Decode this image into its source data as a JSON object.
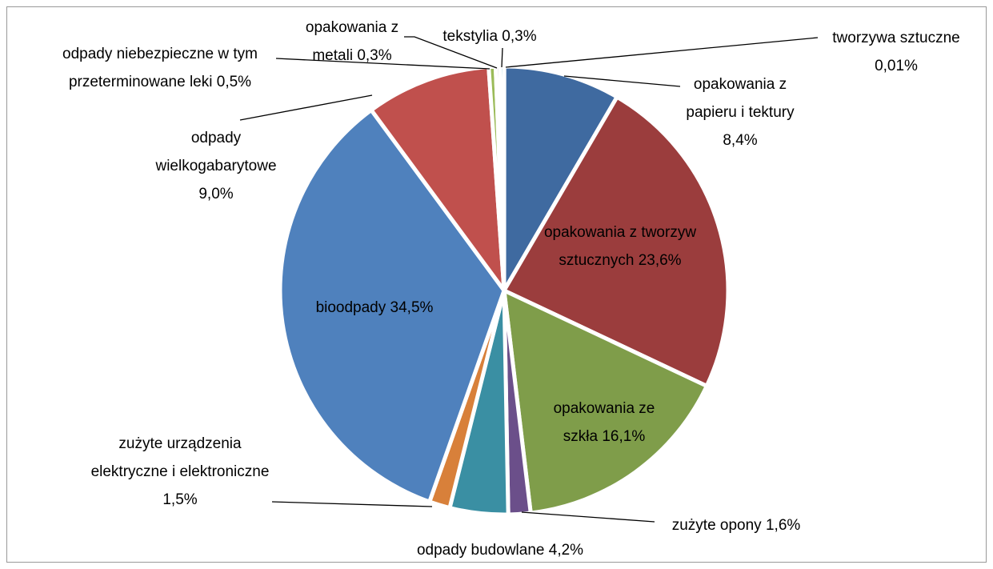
{
  "chart_data": {
    "type": "pie",
    "categories": [
      "tworzywa sztuczne",
      "opakowania z papieru i tektury",
      "opakowania z tworzyw sztucznych",
      "opakowania ze szkła",
      "zużyte opony",
      "odpady budowlane",
      "zużyte urządzenia elektryczne i elektroniczne",
      "bioodpady",
      "odpady wielkogabarytowe",
      "odpady niebezpieczne w tym przeterminowane leki",
      "opakowania z metali",
      "tekstylia"
    ],
    "values": [
      0.01,
      8.4,
      23.6,
      16.1,
      1.6,
      4.2,
      1.5,
      34.5,
      9.0,
      0.5,
      0.3,
      0.3
    ],
    "value_labels": [
      "0,01%",
      "8,4%",
      "23,6%",
      "16,1%",
      "1,6%",
      "4,2%",
      "1,5%",
      "34,5%",
      "9,0%",
      "0,5%",
      "0,3%",
      "0,3%"
    ],
    "colors": [
      "#4bacc6",
      "#3f6aa0",
      "#9b3d3d",
      "#7f9d4a",
      "#6b4f8a",
      "#3a8fa3",
      "#d8803a",
      "#4f81bd",
      "#c0504d",
      "#9bbb59",
      "#8064a2",
      "#4bacc6"
    ]
  }
}
